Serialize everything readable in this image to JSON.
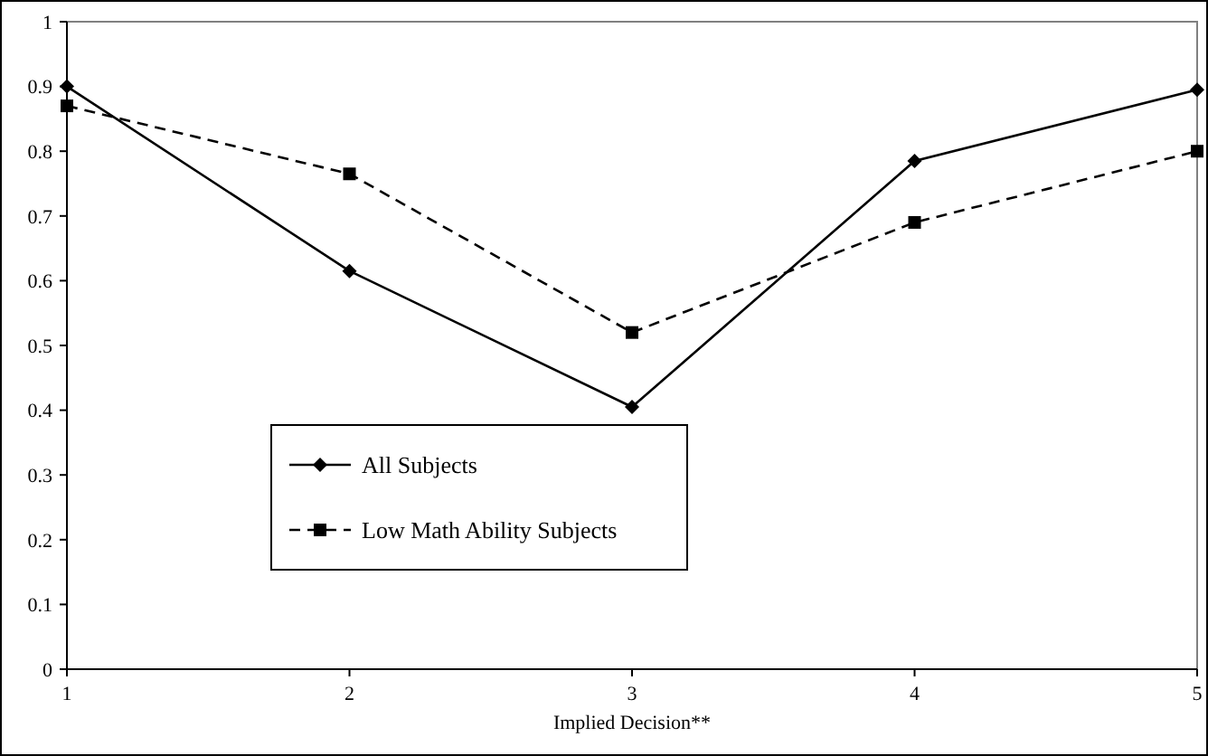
{
  "chart_data": {
    "type": "line",
    "xlabel": "Implied Decision**",
    "x": [
      1,
      2,
      3,
      4,
      5
    ],
    "xlim": [
      1,
      5
    ],
    "xticks": [
      1,
      2,
      3,
      4,
      5
    ],
    "ylim": [
      0,
      1
    ],
    "yticks": [
      0,
      0.1,
      0.2,
      0.3,
      0.4,
      0.5,
      0.6,
      0.7,
      0.8,
      0.9,
      1
    ],
    "grid": false,
    "legend": "bottom left",
    "series": [
      {
        "name": "All Subjects",
        "color": "#000000",
        "marker": "diamond",
        "line_style": "solid",
        "values": [
          0.9,
          0.615,
          0.405,
          0.785,
          0.895
        ]
      },
      {
        "name": "Low Math Ability Subjects",
        "color": "#000000",
        "marker": "square",
        "line_style": "dashed",
        "values": [
          0.87,
          0.765,
          0.52,
          0.69,
          0.8
        ]
      }
    ]
  }
}
